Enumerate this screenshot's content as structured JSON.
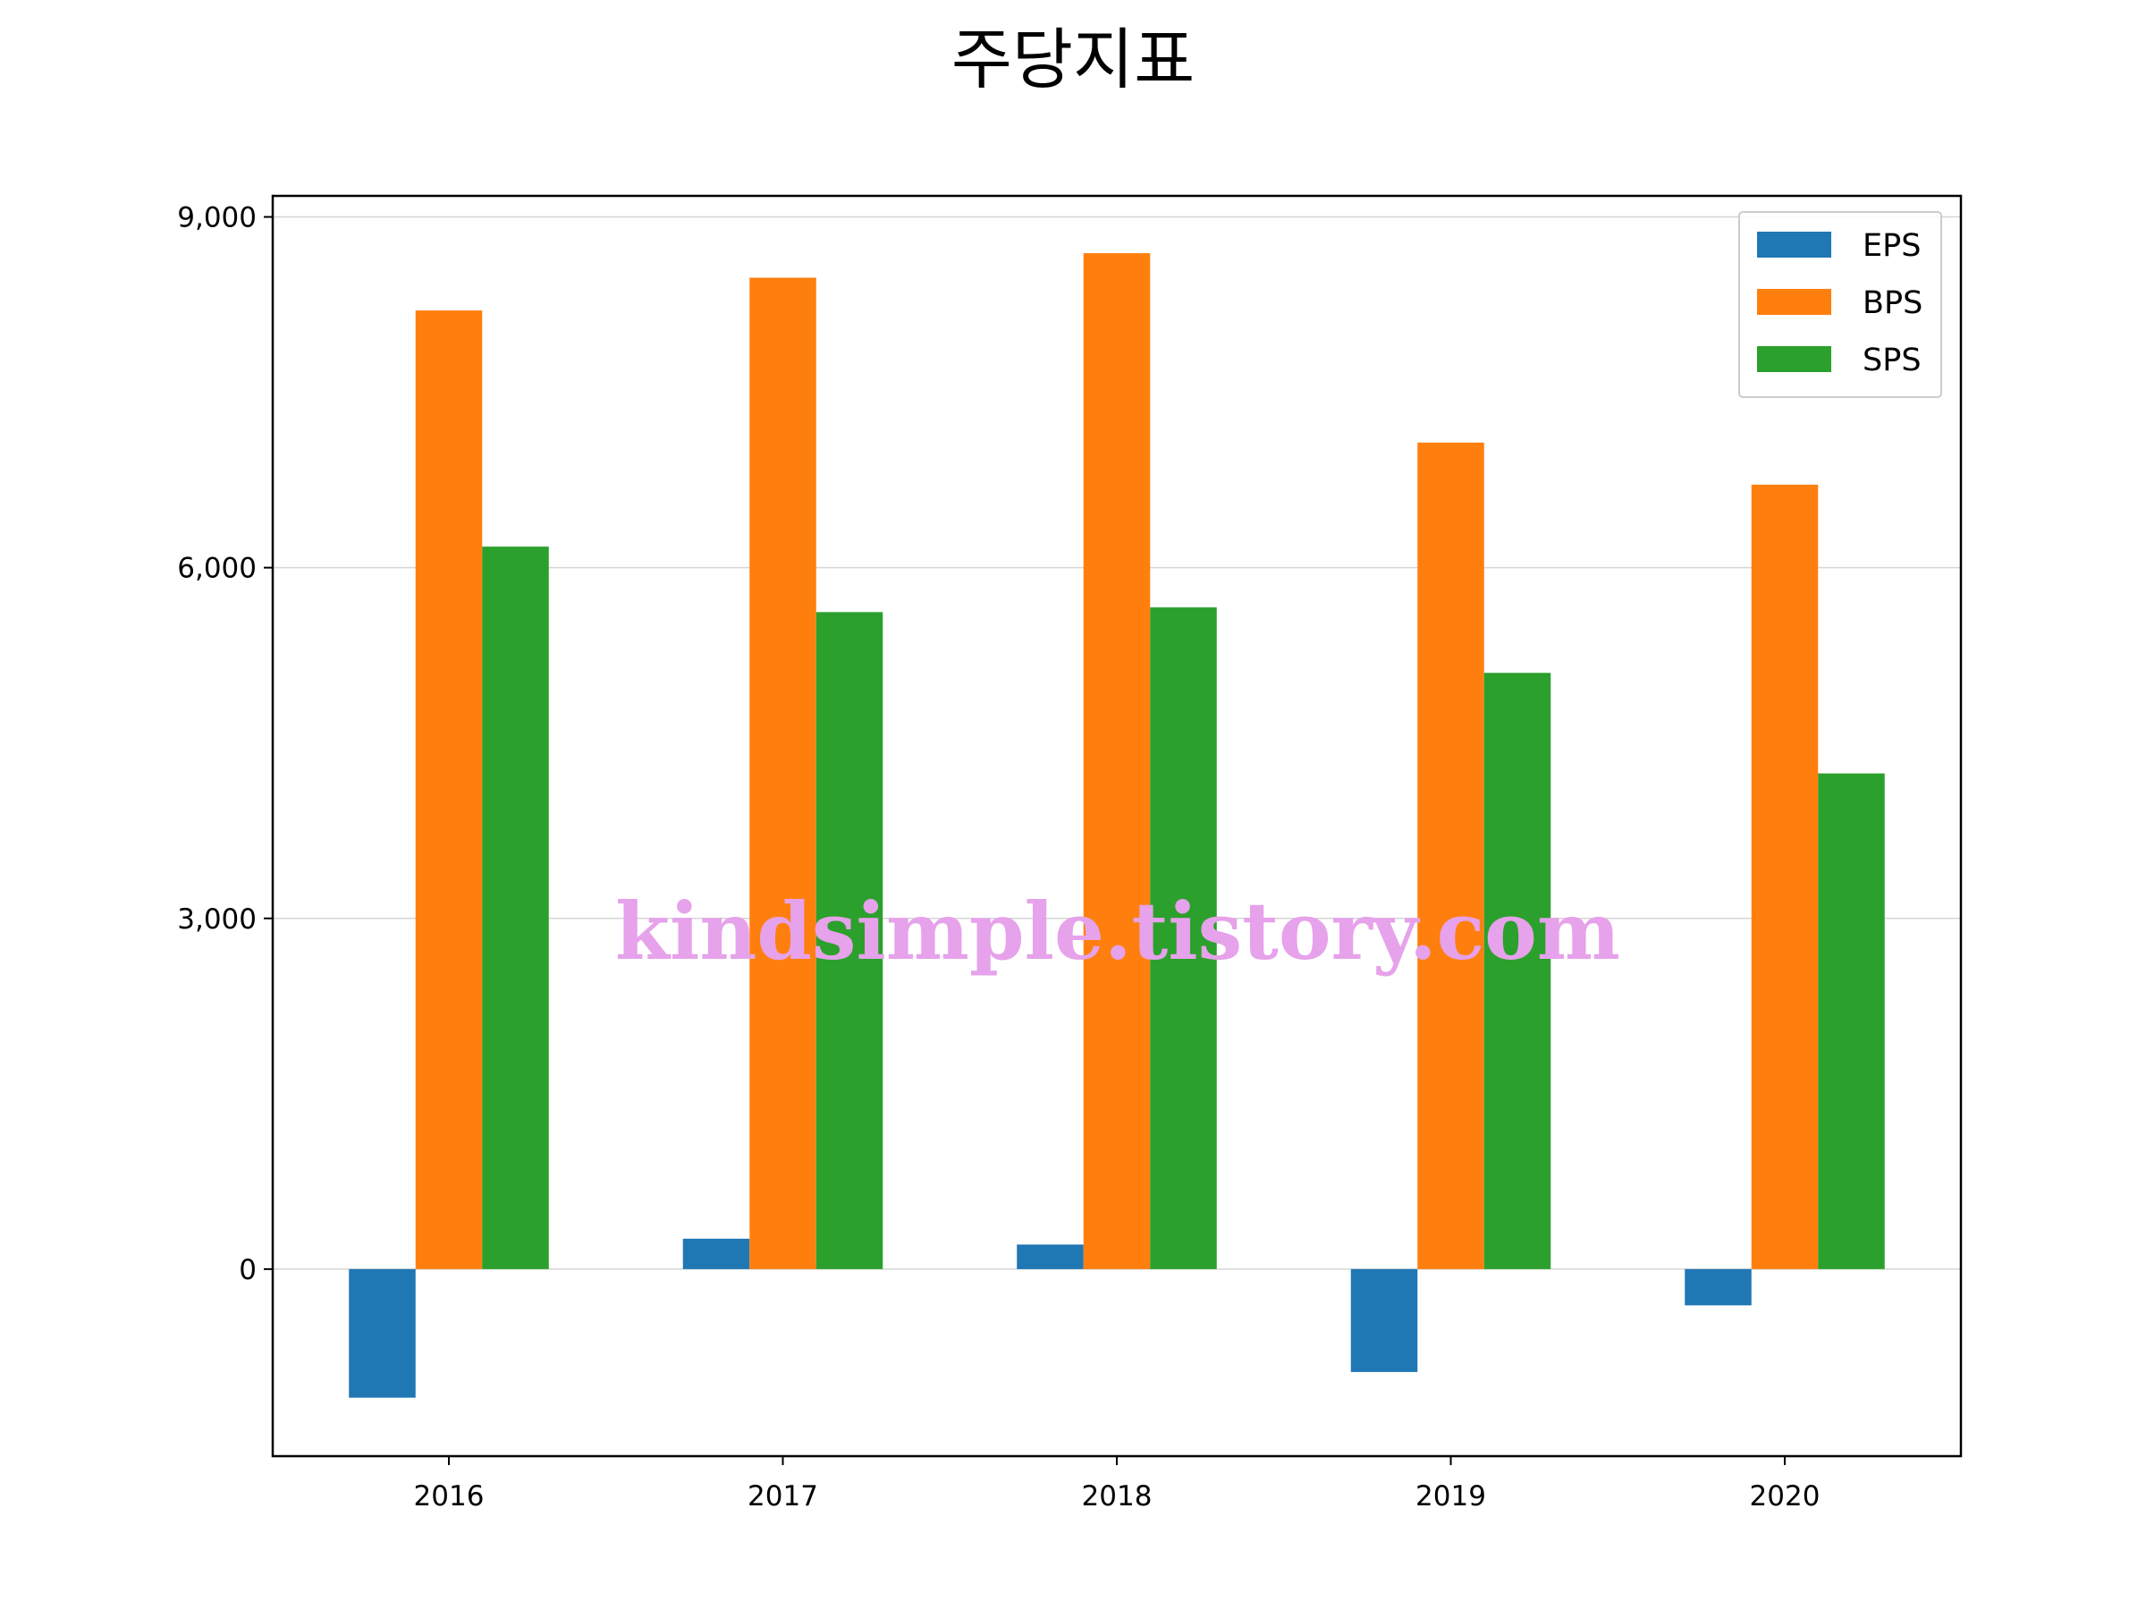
{
  "chart_data": {
    "type": "bar",
    "title": "주당지표",
    "categories": [
      "2016",
      "2017",
      "2018",
      "2019",
      "2020"
    ],
    "series": [
      {
        "name": "EPS",
        "color": "#1f77b4",
        "values": [
          -1100,
          260,
          210,
          -880,
          -310
        ]
      },
      {
        "name": "BPS",
        "color": "#ff7f0e",
        "values": [
          8200,
          8480,
          8690,
          7070,
          6710
        ]
      },
      {
        "name": "SPS",
        "color": "#2ca02c",
        "values": [
          6180,
          5620,
          5660,
          5100,
          4240
        ]
      }
    ],
    "ylim": [
      -1600,
      9180
    ],
    "yticks": [
      0,
      3000,
      6000,
      9000
    ],
    "ytick_labels": [
      "0",
      "3,000",
      "6,000",
      "9,000"
    ],
    "grid": "y",
    "legend_position": "top-right",
    "xlabel": "",
    "ylabel": ""
  },
  "watermark": "kindsimple.tistory.com"
}
